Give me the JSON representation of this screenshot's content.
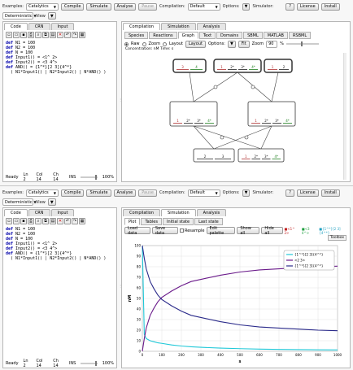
{
  "top": {
    "toolbar": {
      "examples_label": "Examples:",
      "examples_value": "Catalytics",
      "compile": "Compile",
      "simulate": "Simulate",
      "analyse": "Analyse",
      "pause": "Pause",
      "compilation_label": "Compilation:",
      "compilation_value": "Default",
      "options_label": "Options:",
      "simulator_label": "Simulator:",
      "help": "?",
      "license": "License",
      "install": "Install",
      "mode_value": "Deterministic",
      "view_label": "View"
    },
    "editor": {
      "tabs": [
        "Code",
        "CRN",
        "Input"
      ],
      "active_tab": 0,
      "lines": [
        [
          "def",
          "N1 = 100"
        ],
        [
          "def",
          "N2 = 100"
        ],
        [
          "def",
          "N = 100"
        ],
        [
          "def",
          "Input1() = <1^ 2>"
        ],
        [
          "def",
          "Input2() = <3 4^>"
        ],
        [
          "def",
          "AND() = {1^*}[2 3]{4^*}"
        ],
        [
          "",
          "( N1*Input1() | N2*Input2() | N*AND() )"
        ]
      ],
      "status": {
        "ready": "Ready",
        "ln": "Ln 2",
        "col": "Col 14",
        "ch": "Ch 14",
        "ins": "INS",
        "zoom": "100%"
      }
    },
    "panel": {
      "tabs": [
        "Compilation",
        "Simulation",
        "Analysis"
      ],
      "active_tab": 0,
      "subtabs": [
        "Species",
        "Reactions",
        "Graph",
        "Text",
        "Domains",
        "SBML",
        "MATLAB",
        "RSBML"
      ],
      "active_subtab": 2,
      "view_options": {
        "raw": "Raw",
        "zoom": "Zoom",
        "layout": "Layout",
        "layout_btn": "Layout",
        "options": "Options:",
        "fit": "Fit",
        "zoom_label": "Zoom",
        "zoom_value": "90",
        "pct": "%"
      },
      "concentration": "Concentration: nM   Time: s",
      "species": [
        {
          "labels": [
            "3",
            "4"
          ],
          "colors": [
            "#b03030",
            "#208020"
          ]
        },
        {
          "labels": [
            "1",
            "2*",
            "3*",
            "4*"
          ],
          "colors": [
            "#b03030",
            "#202020",
            "#202020",
            "#208020"
          ]
        },
        {
          "labels": [
            "1",
            "2"
          ],
          "colors": [
            "#b03030",
            "#202020"
          ]
        },
        {
          "labels": [
            "1",
            "2*",
            "3*",
            "4*"
          ],
          "colors": [
            "#b03030",
            "#202020",
            "#202020",
            "#208020"
          ]
        },
        {
          "labels": [
            "1",
            "2*",
            "3*",
            "4*"
          ],
          "colors": [
            "#b03030",
            "#202020",
            "#202020",
            "#208020"
          ]
        },
        {
          "labels": [
            "2",
            "3"
          ],
          "colors": [
            "#202020",
            "#202020"
          ]
        },
        {
          "labels": [
            "1",
            "2*",
            "3*",
            "4*"
          ],
          "colors": [
            "#b03030",
            "#202020",
            "#202020",
            "#208020"
          ]
        }
      ]
    }
  },
  "bottom": {
    "toolbar": {
      "examples_label": "Examples:",
      "examples_value": "Catalytics",
      "compile": "Compile",
      "simulate": "Simulate",
      "analyse": "Analyse",
      "pause": "Pause",
      "compilation_label": "Compilation:",
      "compilation_value": "Default",
      "options_label": "Options:",
      "simulator_label": "Simulator:",
      "help": "?",
      "license": "License",
      "install": "Install",
      "mode_value": "Deterministic",
      "view_label": "View"
    },
    "editor": {
      "tabs": [
        "Code",
        "CRN",
        "Input"
      ],
      "active_tab": 0,
      "lines": [
        [
          "def",
          "N1 = 100"
        ],
        [
          "def",
          "N2 = 100"
        ],
        [
          "def",
          "N = 100"
        ],
        [
          "def",
          "Input1() = <1^ 2>"
        ],
        [
          "def",
          "Input2() = <3 4^>"
        ],
        [
          "def",
          "AND() = {1^*}[2 3]{4^*}"
        ],
        [
          "",
          "( N1*Input1() | N2*Input2() | N*AND() )"
        ]
      ],
      "status": {
        "ready": "Ready",
        "ln": "Ln 2",
        "col": "Col 14",
        "ch": "Ch 14",
        "ins": "INS",
        "zoom": "100%"
      }
    },
    "panel": {
      "tabs": [
        "Compilation",
        "Simulation",
        "Analysis"
      ],
      "active_tab": 1,
      "subtabs": [
        "Plot",
        "Tables",
        "Initial state",
        "Last state"
      ],
      "active_subtab": 0,
      "plot_tools": {
        "load": "Load data",
        "save": "Save data",
        "resample": "Resample",
        "edit": "Edit palette",
        "show_all": "Show all",
        "hide_all": "Hide all",
        "toolbox": "Toolbox"
      },
      "chip_labels": [
        "<1^ 2>",
        "<3 4^>",
        "{1^*}[2 3]{4^*}"
      ]
    }
  },
  "chart_data": {
    "type": "line",
    "ylabel": "nM",
    "xlabel": "s",
    "xlim": [
      0,
      1000
    ],
    "ylim": [
      0,
      100
    ],
    "xticks": [
      0,
      100,
      200,
      300,
      400,
      500,
      600,
      700,
      800,
      900,
      1000
    ],
    "yticks": [
      0,
      10,
      20,
      30,
      40,
      50,
      60,
      70,
      80,
      90,
      100
    ],
    "grid": true,
    "legend_position": "top-right",
    "x": [
      0,
      10,
      20,
      40,
      60,
      80,
      100,
      150,
      200,
      250,
      300,
      400,
      500,
      600,
      700,
      800,
      900,
      1000
    ],
    "series": [
      {
        "name": "{1^*}[2 3]{4^*}",
        "color": "#20c8d8",
        "values": [
          100,
          16,
          12,
          10,
          9,
          8,
          7.5,
          6,
          5,
          4.3,
          3.8,
          3,
          2.5,
          2.1,
          1.8,
          1.6,
          1.4,
          1.3
        ]
      },
      {
        "name": "<2 3>",
        "color": "#6a1a8a",
        "values": [
          0,
          12,
          22,
          34,
          41,
          47,
          51,
          57,
          62,
          66,
          68,
          72,
          75,
          77,
          78,
          79,
          80,
          80.5
        ]
      },
      {
        "name": "{1^*}[2 3]{4^*}",
        "color": "#2a2a8a",
        "values": [
          100,
          88,
          78,
          66,
          59,
          53,
          49,
          43,
          38,
          34,
          32,
          28,
          25,
          23,
          22,
          21,
          20,
          19.5
        ]
      }
    ]
  }
}
